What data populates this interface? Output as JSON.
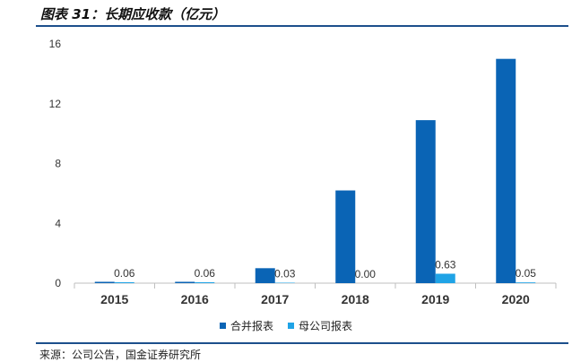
{
  "figure": {
    "title": "图表 31：长期应收款（亿元）",
    "source": "来源：公司公告，国金证券研究所"
  },
  "colors": {
    "consolidated": "#0a64b5",
    "parent": "#1fa3e6",
    "axis": "#bfbfbf",
    "rule": "#1c4f8c"
  },
  "chart_data": {
    "type": "bar",
    "categories": [
      "2015",
      "2016",
      "2017",
      "2018",
      "2019",
      "2020"
    ],
    "series": [
      {
        "name": "合并报表",
        "values": [
          0.09,
          0.09,
          1.0,
          6.2,
          10.9,
          15.0
        ],
        "labels": [
          "",
          "",
          "",
          "",
          "",
          ""
        ]
      },
      {
        "name": "母公司报表",
        "values": [
          0.06,
          0.06,
          0.03,
          0.0,
          0.63,
          0.05
        ],
        "labels": [
          "0.06",
          "0.06",
          "0.03",
          "0.00",
          "0.63",
          "0.05"
        ]
      }
    ],
    "yticks": [
      "0",
      "4",
      "8",
      "12",
      "16"
    ],
    "ylim": [
      0,
      16
    ],
    "grid": false,
    "legend_position": "bottom"
  }
}
